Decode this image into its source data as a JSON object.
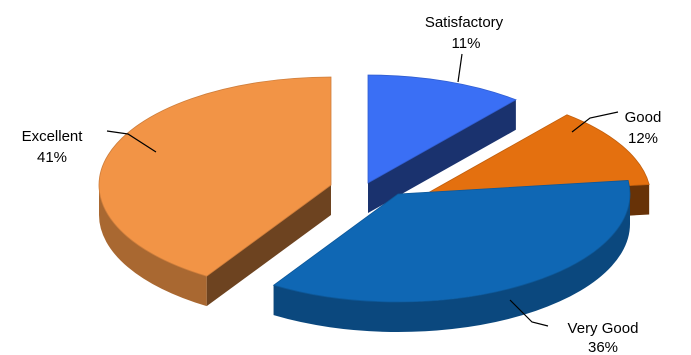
{
  "chart_data": {
    "type": "pie",
    "title": "",
    "categories": [
      "Satisfactory",
      "Good",
      "Very Good",
      "Excellent"
    ],
    "values": [
      11,
      12,
      36,
      41
    ],
    "value_labels": [
      "11%",
      "12%",
      "36%",
      "41%"
    ],
    "exploded": true,
    "three_d": true,
    "legend": "none",
    "colors": {
      "Satisfactory": "#3A6FF5",
      "Good": "#E4700F",
      "Very Good": "#0F67B4",
      "Excellent": "#F29446"
    }
  }
}
